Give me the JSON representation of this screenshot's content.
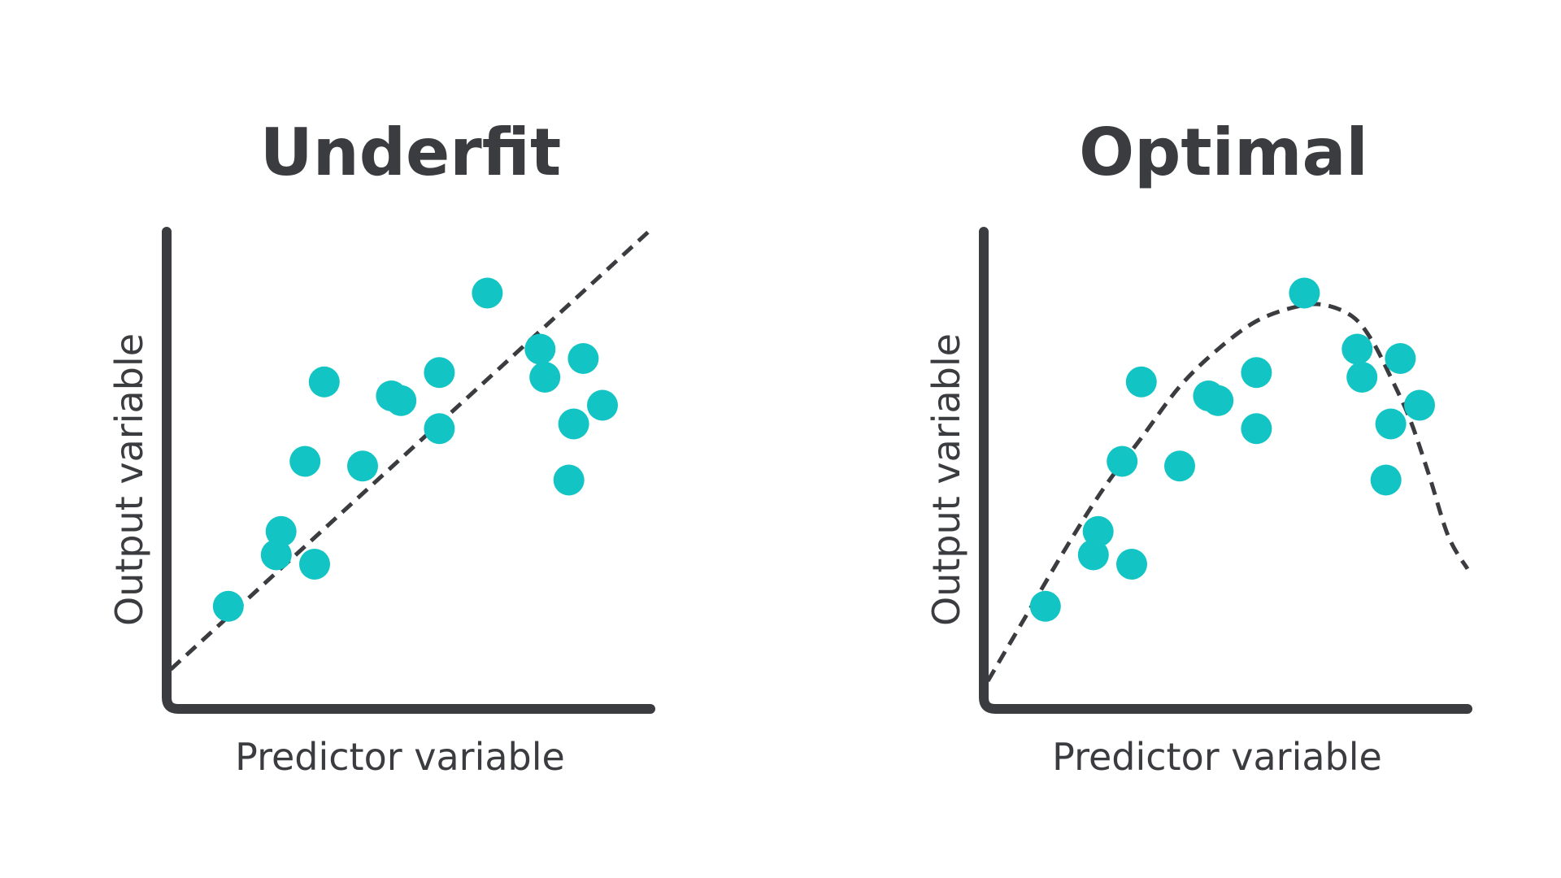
{
  "figure": {
    "colors": {
      "background": "#ffffff",
      "axis": "#3b3c40",
      "point": "#13c4c4",
      "text": "#3b3c40"
    }
  },
  "chart_data": [
    {
      "type": "scatter",
      "title": "Underfit",
      "xlabel": "Predictor variable",
      "ylabel": "Output variable",
      "xlim": [
        0,
        10
      ],
      "ylim": [
        0,
        10
      ],
      "grid": false,
      "points": {
        "x": [
          1.2,
          2.2,
          2.3,
          2.8,
          3.0,
          3.2,
          4.0,
          4.6,
          4.8,
          5.6,
          5.6,
          6.6,
          7.7,
          7.8,
          8.3,
          8.4,
          8.6,
          9.0
        ],
        "y": [
          1.9,
          3.0,
          3.5,
          5.0,
          2.8,
          6.7,
          4.9,
          6.4,
          6.3,
          5.7,
          6.9,
          8.6,
          7.4,
          6.8,
          4.6,
          5.8,
          7.2,
          6.2
        ]
      },
      "fit": {
        "style": "dashed",
        "x": [
          0,
          10
        ],
        "y": [
          0.55,
          9.95
        ]
      }
    },
    {
      "type": "scatter",
      "title": "Optimal",
      "xlabel": "Predictor variable",
      "ylabel": "Output variable",
      "xlim": [
        0,
        10
      ],
      "ylim": [
        0,
        10
      ],
      "grid": false,
      "points": {
        "x": [
          1.2,
          2.2,
          2.3,
          2.8,
          3.0,
          3.2,
          4.0,
          4.6,
          4.8,
          5.6,
          5.6,
          6.6,
          7.7,
          7.8,
          8.3,
          8.4,
          8.6,
          9.0
        ],
        "y": [
          1.9,
          3.0,
          3.5,
          5.0,
          2.8,
          6.7,
          4.9,
          6.4,
          6.3,
          5.7,
          6.9,
          8.6,
          7.4,
          6.8,
          4.6,
          5.8,
          7.2,
          6.2
        ]
      },
      "fit": {
        "style": "dashed",
        "x": [
          0,
          0.8,
          1.6,
          2.4,
          3.2,
          4.0,
          4.8,
          5.6,
          6.4,
          7.0,
          7.6,
          8.0,
          8.4,
          8.8,
          9.2,
          9.6,
          10.0
        ],
        "y": [
          0.3,
          1.7,
          3.1,
          4.4,
          5.5,
          6.6,
          7.4,
          8.0,
          8.3,
          8.35,
          8.1,
          7.6,
          6.8,
          5.9,
          4.7,
          3.4,
          2.7
        ]
      }
    }
  ]
}
